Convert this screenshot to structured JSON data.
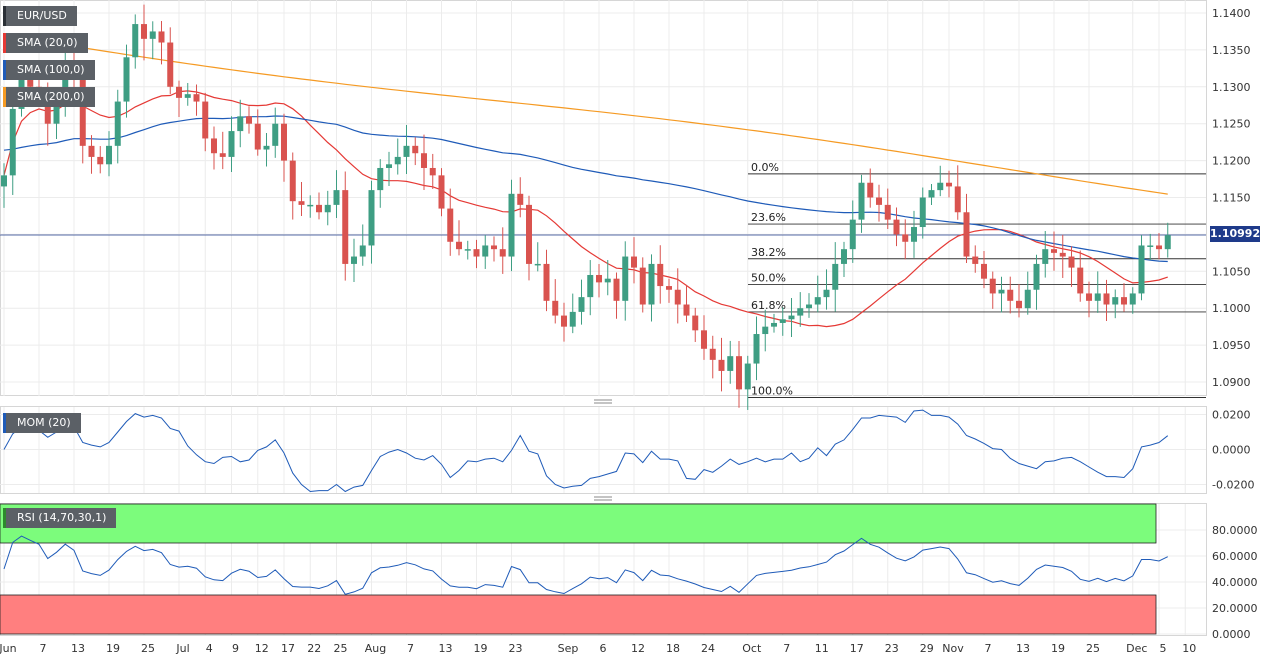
{
  "chart_data": [
    {
      "type": "candlestick",
      "instrument": "EUR/USD",
      "indicators": [
        {
          "name": "SMA (20,0)",
          "color": "#e53935"
        },
        {
          "name": "SMA (100,0)",
          "color": "#1f5bb8"
        },
        {
          "name": "SMA (200,0)",
          "color": "#f59a23"
        }
      ],
      "last_price": "1.10992",
      "y_ticks": [
        "1.1400",
        "1.1350",
        "1.1300",
        "1.1250",
        "1.1200",
        "1.1150",
        "1.1100",
        "1.1050",
        "1.1000",
        "1.0950",
        "1.0900"
      ],
      "x_ticks": [
        {
          "label": "Jun",
          "i": 0
        },
        {
          "label": "7",
          "i": 4
        },
        {
          "label": "13",
          "i": 8
        },
        {
          "label": "19",
          "i": 12
        },
        {
          "label": "25",
          "i": 16
        },
        {
          "label": "Jul",
          "i": 20
        },
        {
          "label": "4",
          "i": 23
        },
        {
          "label": "9",
          "i": 26
        },
        {
          "label": "12",
          "i": 29
        },
        {
          "label": "17",
          "i": 32
        },
        {
          "label": "22",
          "i": 35
        },
        {
          "label": "25",
          "i": 38
        },
        {
          "label": "Aug",
          "i": 42
        },
        {
          "label": "7",
          "i": 46
        },
        {
          "label": "13",
          "i": 50
        },
        {
          "label": "19",
          "i": 54
        },
        {
          "label": "23",
          "i": 58
        },
        {
          "label": "Sep",
          "i": 64
        },
        {
          "label": "6",
          "i": 68
        },
        {
          "label": "12",
          "i": 72
        },
        {
          "label": "18",
          "i": 76
        },
        {
          "label": "24",
          "i": 80
        },
        {
          "label": "Oct",
          "i": 85
        },
        {
          "label": "7",
          "i": 89
        },
        {
          "label": "11",
          "i": 93
        },
        {
          "label": "17",
          "i": 97
        },
        {
          "label": "23",
          "i": 101
        },
        {
          "label": "29",
          "i": 105
        },
        {
          "label": "Nov",
          "i": 108
        },
        {
          "label": "7",
          "i": 112
        },
        {
          "label": "13",
          "i": 116
        },
        {
          "label": "19",
          "i": 120
        },
        {
          "label": "25",
          "i": 124
        },
        {
          "label": "Dec",
          "i": 129
        },
        {
          "label": "5",
          "i": 132
        },
        {
          "label": "10",
          "i": 135
        }
      ],
      "fibonacci": [
        {
          "label": "0.0%",
          "value": 1.1182
        },
        {
          "label": "23.6%",
          "value": 1.1114
        },
        {
          "label": "38.2%",
          "value": 1.1067
        },
        {
          "label": "50.0%",
          "value": 1.1032
        },
        {
          "label": "61.8%",
          "value": 1.0995
        },
        {
          "label": "100.0%",
          "value": 1.0879
        }
      ],
      "closes": [
        1.118,
        1.127,
        1.131,
        1.13,
        1.129,
        1.125,
        1.128,
        1.133,
        1.131,
        1.122,
        1.1205,
        1.1195,
        1.122,
        1.128,
        1.134,
        1.1385,
        1.1365,
        1.1375,
        1.136,
        1.13,
        1.1285,
        1.129,
        1.128,
        1.123,
        1.121,
        1.1205,
        1.124,
        1.126,
        1.125,
        1.1215,
        1.122,
        1.125,
        1.12,
        1.1145,
        1.114,
        1.114,
        1.113,
        1.114,
        1.116,
        1.106,
        1.107,
        1.1085,
        1.116,
        1.119,
        1.1195,
        1.1205,
        1.122,
        1.121,
        1.119,
        1.118,
        1.1135,
        1.109,
        1.108,
        1.108,
        1.107,
        1.1085,
        1.108,
        1.107,
        1.1155,
        1.114,
        1.106,
        1.106,
        1.101,
        1.099,
        1.0975,
        1.0995,
        1.1015,
        1.1045,
        1.1035,
        1.104,
        1.101,
        1.107,
        1.1055,
        1.1005,
        1.106,
        1.103,
        1.1025,
        1.1005,
        1.099,
        1.097,
        1.0945,
        1.093,
        1.0915,
        1.0935,
        1.089,
        1.0925,
        1.0965,
        1.0975,
        1.098,
        1.0985,
        1.099,
        1.1,
        1.1005,
        1.1015,
        1.1025,
        1.106,
        1.108,
        1.112,
        1.117,
        1.115,
        1.114,
        1.112,
        1.11,
        1.109,
        1.111,
        1.115,
        1.116,
        1.117,
        1.1165,
        1.113,
        1.107,
        1.106,
        1.104,
        1.102,
        1.1025,
        1.101,
        1.1,
        1.1025,
        1.106,
        1.108,
        1.1075,
        1.107,
        1.1055,
        1.102,
        1.101,
        1.102,
        1.1005,
        1.1015,
        1.1005,
        1.102,
        1.1085,
        1.1085,
        1.108,
        1.1099
      ]
    },
    {
      "type": "line",
      "indicator": "MOM (20)",
      "y_ticks": [
        "0.0200",
        "0.0000",
        "-0.0200"
      ],
      "ylim": [
        -0.025,
        0.025
      ]
    },
    {
      "type": "line",
      "indicator": "RSI (14,70,30,1)",
      "y_ticks": [
        "80.0000",
        "60.0000",
        "40.0000",
        "20.0000",
        "0.0000"
      ],
      "ylim": [
        0,
        100
      ],
      "overbought": 70,
      "oversold": 30
    }
  ]
}
